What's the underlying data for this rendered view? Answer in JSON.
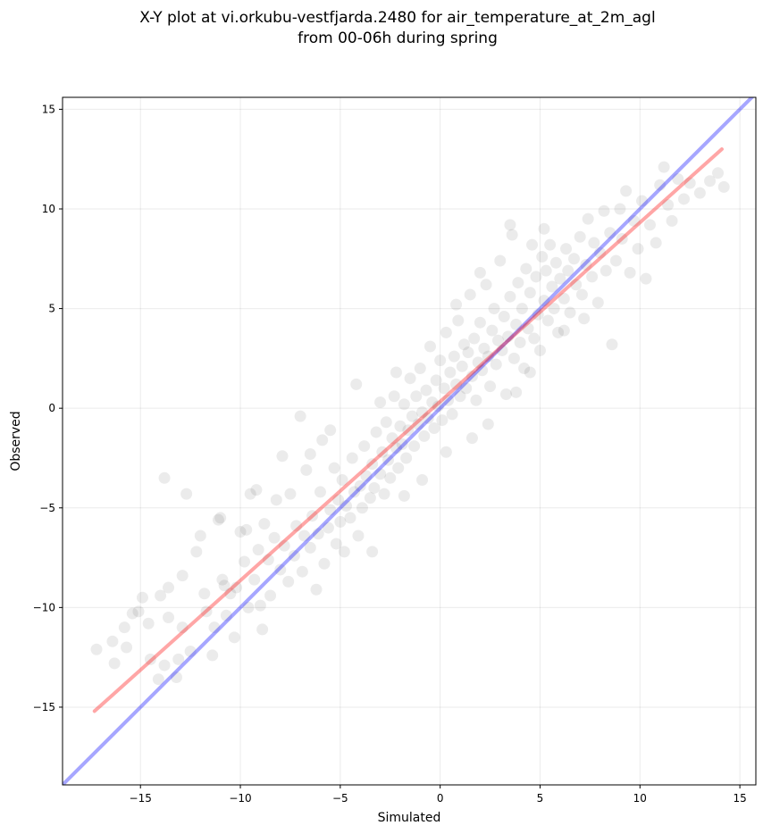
{
  "chart_data": {
    "type": "scatter",
    "title": "X-Y plot at vi.orkubu-vestfjarda.2480 for air_temperature_at_2m_agl",
    "subtitle": "from 00-06h during spring",
    "xlabel": "Simulated",
    "ylabel": "Observed",
    "xlim": [
      -18.9,
      15.8
    ],
    "ylim": [
      -18.9,
      15.6
    ],
    "xticks": [
      -15,
      -10,
      -5,
      0,
      5,
      10,
      15
    ],
    "yticks": [
      -15,
      -10,
      -5,
      0,
      5,
      10,
      15
    ],
    "xtick_labels": [
      "−15",
      "−10",
      "−5",
      "0",
      "5",
      "10",
      "15"
    ],
    "ytick_labels": [
      "−15",
      "−10",
      "−5",
      "0",
      "5",
      "10",
      "15"
    ],
    "grid": true,
    "point_color": "#000000",
    "point_alpha": 0.08,
    "points": [
      [
        -17.2,
        -12.1
      ],
      [
        -16.4,
        -11.7
      ],
      [
        -16.3,
        -12.8
      ],
      [
        -15.8,
        -11.0
      ],
      [
        -15.4,
        -10.3
      ],
      [
        -15.1,
        -10.2
      ],
      [
        -14.9,
        -9.5
      ],
      [
        -14.6,
        -10.8
      ],
      [
        -14.5,
        -12.6
      ],
      [
        -14.1,
        -13.6
      ],
      [
        -14.0,
        -9.4
      ],
      [
        -13.8,
        -12.9
      ],
      [
        -13.6,
        -10.5
      ],
      [
        -13.6,
        -9.0
      ],
      [
        -13.2,
        -13.5
      ],
      [
        -13.1,
        -12.6
      ],
      [
        -12.9,
        -11.0
      ],
      [
        -12.7,
        -4.3
      ],
      [
        -13.8,
        -3.5
      ],
      [
        -12.5,
        -12.2
      ],
      [
        -12.2,
        -7.2
      ],
      [
        -12.0,
        -6.4
      ],
      [
        -11.8,
        -9.3
      ],
      [
        -11.7,
        -10.2
      ],
      [
        -11.4,
        -12.4
      ],
      [
        -11.3,
        -11.0
      ],
      [
        -11.0,
        -5.5
      ],
      [
        -10.9,
        -8.6
      ],
      [
        -10.7,
        -10.4
      ],
      [
        -10.5,
        -9.3
      ],
      [
        -10.3,
        -11.5
      ],
      [
        -10.2,
        -9.0
      ],
      [
        -10.0,
        -6.2
      ],
      [
        -9.8,
        -7.7
      ],
      [
        -9.7,
        -6.1
      ],
      [
        -9.6,
        -10.0
      ],
      [
        -9.5,
        -4.3
      ],
      [
        -9.3,
        -8.6
      ],
      [
        -9.1,
        -7.1
      ],
      [
        -9.0,
        -9.9
      ],
      [
        -8.9,
        -11.1
      ],
      [
        -8.8,
        -5.8
      ],
      [
        -8.6,
        -7.6
      ],
      [
        -8.5,
        -9.4
      ],
      [
        -8.3,
        -6.5
      ],
      [
        -8.2,
        -4.6
      ],
      [
        -8.0,
        -8.1
      ],
      [
        -7.9,
        -2.4
      ],
      [
        -7.8,
        -6.9
      ],
      [
        -7.6,
        -8.7
      ],
      [
        -7.5,
        -4.3
      ],
      [
        -7.3,
        -7.4
      ],
      [
        -7.2,
        -5.9
      ],
      [
        -7.0,
        -0.4
      ],
      [
        -6.9,
        -8.2
      ],
      [
        -6.8,
        -6.4
      ],
      [
        -6.7,
        -3.1
      ],
      [
        -6.5,
        -7.0
      ],
      [
        -6.4,
        -5.4
      ],
      [
        -6.2,
        -9.1
      ],
      [
        -6.1,
        -6.3
      ],
      [
        -6.0,
        -4.2
      ],
      [
        -5.9,
        -1.6
      ],
      [
        -5.8,
        -7.8
      ],
      [
        -5.6,
        -6.0
      ],
      [
        -5.5,
        -5.1
      ],
      [
        -5.3,
        -3.0
      ],
      [
        -5.2,
        -6.8
      ],
      [
        -5.1,
        -4.6
      ],
      [
        -5.0,
        -5.7
      ],
      [
        -4.9,
        -3.6
      ],
      [
        -4.8,
        -7.2
      ],
      [
        -4.7,
        -4.9
      ],
      [
        -4.5,
        -5.5
      ],
      [
        -4.4,
        -2.5
      ],
      [
        -4.3,
        -4.2
      ],
      [
        -4.1,
        -6.4
      ],
      [
        -4.0,
        -3.9
      ],
      [
        -3.9,
        -5.0
      ],
      [
        -3.8,
        -1.9
      ],
      [
        -3.7,
        -3.4
      ],
      [
        -3.5,
        -4.5
      ],
      [
        -3.4,
        -2.8
      ],
      [
        -3.3,
        -4.0
      ],
      [
        -3.2,
        -1.2
      ],
      [
        -3.0,
        -3.3
      ],
      [
        -2.9,
        -2.2
      ],
      [
        -2.8,
        -4.3
      ],
      [
        -2.7,
        -0.7
      ],
      [
        -2.6,
        -2.6
      ],
      [
        -2.5,
        -3.5
      ],
      [
        -2.4,
        -1.5
      ],
      [
        -2.3,
        0.6
      ],
      [
        -2.2,
        -2.0
      ],
      [
        -2.1,
        -3.0
      ],
      [
        -2.0,
        -0.9
      ],
      [
        -1.9,
        -1.8
      ],
      [
        -1.8,
        0.2
      ],
      [
        -1.7,
        -2.5
      ],
      [
        -1.6,
        -1.1
      ],
      [
        -1.5,
        1.5
      ],
      [
        -1.4,
        -0.4
      ],
      [
        -1.3,
        -1.9
      ],
      [
        -1.2,
        0.6
      ],
      [
        -1.1,
        -0.8
      ],
      [
        -1.0,
        2.0
      ],
      [
        -0.9,
        -0.2
      ],
      [
        -0.8,
        -1.4
      ],
      [
        -0.7,
        0.9
      ],
      [
        -0.6,
        -0.5
      ],
      [
        -0.5,
        3.1
      ],
      [
        -0.4,
        0.3
      ],
      [
        -0.3,
        -1.0
      ],
      [
        -0.2,
        1.4
      ],
      [
        -0.1,
        0.1
      ],
      [
        0.0,
        2.4
      ],
      [
        0.1,
        -0.6
      ],
      [
        0.2,
        1.0
      ],
      [
        0.3,
        3.8
      ],
      [
        0.4,
        0.4
      ],
      [
        0.5,
        1.8
      ],
      [
        0.6,
        -0.3
      ],
      [
        0.7,
        2.6
      ],
      [
        0.8,
        1.2
      ],
      [
        0.9,
        4.4
      ],
      [
        1.0,
        0.6
      ],
      [
        1.1,
        2.1
      ],
      [
        1.2,
        3.2
      ],
      [
        1.3,
        1.0
      ],
      [
        1.4,
        2.8
      ],
      [
        1.5,
        5.7
      ],
      [
        1.6,
        1.6
      ],
      [
        1.7,
        3.5
      ],
      [
        1.8,
        0.4
      ],
      [
        1.9,
        2.3
      ],
      [
        2.0,
        4.3
      ],
      [
        2.1,
        1.9
      ],
      [
        2.2,
        3.0
      ],
      [
        2.3,
        6.2
      ],
      [
        2.4,
        2.6
      ],
      [
        2.5,
        1.1
      ],
      [
        2.6,
        3.9
      ],
      [
        2.7,
        5.0
      ],
      [
        2.8,
        2.2
      ],
      [
        2.9,
        3.4
      ],
      [
        3.0,
        7.4
      ],
      [
        3.1,
        2.9
      ],
      [
        3.2,
        4.6
      ],
      [
        3.3,
        0.7
      ],
      [
        3.4,
        3.6
      ],
      [
        3.5,
        5.6
      ],
      [
        3.6,
        8.7
      ],
      [
        3.7,
        2.5
      ],
      [
        3.8,
        4.2
      ],
      [
        3.9,
        6.3
      ],
      [
        4.0,
        3.3
      ],
      [
        4.1,
        5.0
      ],
      [
        4.2,
        2.0
      ],
      [
        4.3,
        7.0
      ],
      [
        4.4,
        4.0
      ],
      [
        4.5,
        5.8
      ],
      [
        4.6,
        8.2
      ],
      [
        4.7,
        3.5
      ],
      [
        4.8,
        6.6
      ],
      [
        4.9,
        4.7
      ],
      [
        5.0,
        2.9
      ],
      [
        5.1,
        7.6
      ],
      [
        5.2,
        5.4
      ],
      [
        5.3,
        6.9
      ],
      [
        5.4,
        4.4
      ],
      [
        5.5,
        8.2
      ],
      [
        5.6,
        6.1
      ],
      [
        5.7,
        5.0
      ],
      [
        5.8,
        7.3
      ],
      [
        5.9,
        3.8
      ],
      [
        6.0,
        6.5
      ],
      [
        6.2,
        5.5
      ],
      [
        6.3,
        8.0
      ],
      [
        6.4,
        6.9
      ],
      [
        6.5,
        4.8
      ],
      [
        6.7,
        7.5
      ],
      [
        6.8,
        6.2
      ],
      [
        7.0,
        8.6
      ],
      [
        7.1,
        5.7
      ],
      [
        7.3,
        7.2
      ],
      [
        7.4,
        9.5
      ],
      [
        7.6,
        6.6
      ],
      [
        7.7,
        8.3
      ],
      [
        7.9,
        5.3
      ],
      [
        8.0,
        7.8
      ],
      [
        8.2,
        9.9
      ],
      [
        8.3,
        6.9
      ],
      [
        8.5,
        8.8
      ],
      [
        8.6,
        3.2
      ],
      [
        8.8,
        7.4
      ],
      [
        9.0,
        10.0
      ],
      [
        9.1,
        8.5
      ],
      [
        9.3,
        10.9
      ],
      [
        9.5,
        6.8
      ],
      [
        9.7,
        9.4
      ],
      [
        9.9,
        8.0
      ],
      [
        10.1,
        10.4
      ],
      [
        10.3,
        6.5
      ],
      [
        10.5,
        9.2
      ],
      [
        10.8,
        8.3
      ],
      [
        11.0,
        11.2
      ],
      [
        11.2,
        12.1
      ],
      [
        11.4,
        10.2
      ],
      [
        11.6,
        9.4
      ],
      [
        11.9,
        11.5
      ],
      [
        12.2,
        10.5
      ],
      [
        12.5,
        11.3
      ],
      [
        13.0,
        10.8
      ],
      [
        13.5,
        11.4
      ],
      [
        13.9,
        11.8
      ],
      [
        14.2,
        11.1
      ],
      [
        -3.4,
        -7.2
      ],
      [
        -6.5,
        -2.3
      ],
      [
        -5.5,
        -1.1
      ],
      [
        -11.1,
        -5.6
      ],
      [
        -9.2,
        -4.1
      ],
      [
        -10.8,
        -8.9
      ],
      [
        -12.9,
        -8.4
      ],
      [
        -15.7,
        -12.0
      ],
      [
        -4.2,
        1.2
      ],
      [
        -3.0,
        0.3
      ],
      [
        -2.2,
        1.8
      ],
      [
        3.5,
        9.2
      ],
      [
        2.0,
        6.8
      ],
      [
        0.8,
        5.2
      ],
      [
        5.2,
        9.0
      ],
      [
        1.6,
        -1.5
      ],
      [
        2.4,
        -0.8
      ],
      [
        3.8,
        0.8
      ],
      [
        4.5,
        1.8
      ],
      [
        6.2,
        3.9
      ],
      [
        7.2,
        4.5
      ],
      [
        -0.9,
        -3.6
      ],
      [
        -1.8,
        -4.4
      ],
      [
        0.3,
        -2.2
      ]
    ],
    "fit_line": {
      "color": "#ff0000",
      "alpha": 0.35,
      "from": [
        -17.3,
        -15.2
      ],
      "to": [
        14.1,
        13.0
      ]
    },
    "identity_line": {
      "color": "#0000ff",
      "alpha": 0.35,
      "from": [
        -18.9,
        -18.9
      ],
      "to": [
        15.8,
        15.8
      ]
    }
  }
}
